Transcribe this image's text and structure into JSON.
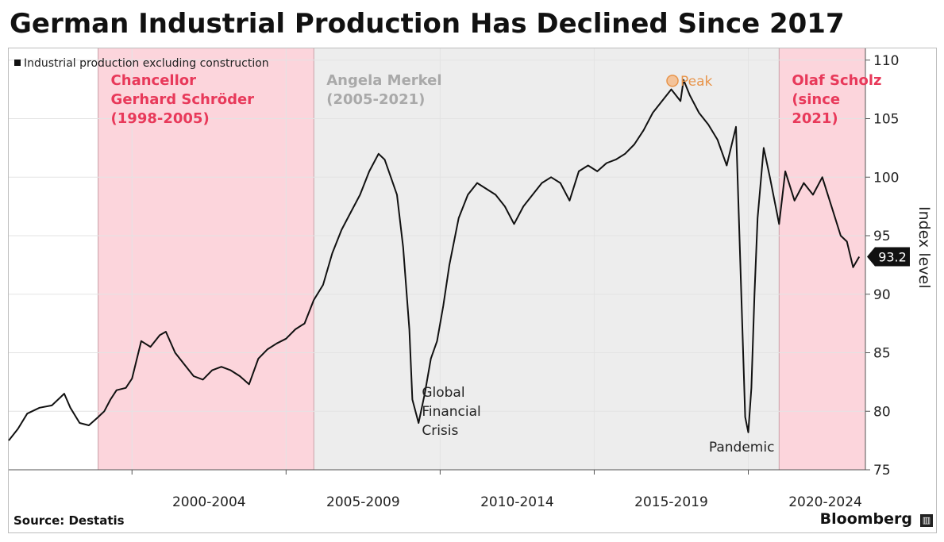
{
  "title": "German Industrial Production Has Declined Since 2017",
  "source": "Source: Destatis",
  "brand": "Bloomberg",
  "chart_data": {
    "type": "line",
    "legend": "Industrial production excluding construction",
    "ylabel": "Index level",
    "ylim": [
      75,
      111
    ],
    "yticks": [
      75,
      80,
      85,
      90,
      95,
      100,
      105,
      110
    ],
    "xlim": [
      1996.0,
      2023.8
    ],
    "x_periods": [
      {
        "label": "2000-2004",
        "start": 2000,
        "end": 2005
      },
      {
        "label": "2005-2009",
        "start": 2005,
        "end": 2010
      },
      {
        "label": "2010-2014",
        "start": 2010,
        "end": 2015
      },
      {
        "label": "2015-2019",
        "start": 2015,
        "end": 2020
      },
      {
        "label": "2020-2024",
        "start": 2020,
        "end": 2025
      }
    ],
    "last_value_label": "93.2",
    "shaded_periods": [
      {
        "label_lines": [
          "Chancellor",
          "Gerhard Schröder",
          "(1998-2005)"
        ],
        "start": 1998.9,
        "end": 2005.9,
        "color": "#fcd5dc",
        "text_color": "#e8395a"
      },
      {
        "label_lines": [
          "Angela Merkel",
          "(2005-2021)"
        ],
        "start": 2005.9,
        "end": 2021.0,
        "color": "#ededed",
        "text_color": "#a9a9a9"
      },
      {
        "label_lines": [
          "Olaf Scholz",
          "(since",
          "2021)"
        ],
        "start": 2021.0,
        "end": 2023.8,
        "color": "#fcd5dc",
        "text_color": "#e8395a"
      }
    ],
    "annotations": [
      {
        "text_lines": [
          "Global",
          "Financial",
          "Crisis"
        ],
        "x": 2009.2,
        "y": 79.0,
        "color": "#222"
      },
      {
        "text_lines": [
          "Pandemic"
        ],
        "x": 2020.3,
        "y": 78.2,
        "color": "#222"
      },
      {
        "text_lines": [
          "Peak"
        ],
        "x": 2017.9,
        "y": 108.3,
        "color": "#e8944a"
      }
    ],
    "series": [
      {
        "name": "Industrial production excluding construction",
        "color": "#111111",
        "x": [
          1996.0,
          1996.3,
          1996.6,
          1997.0,
          1997.4,
          1997.8,
          1998.0,
          1998.3,
          1998.6,
          1998.9,
          1999.1,
          1999.3,
          1999.5,
          1999.8,
          2000.0,
          2000.3,
          2000.6,
          2000.9,
          2001.1,
          2001.4,
          2001.7,
          2002.0,
          2002.3,
          2002.6,
          2002.9,
          2003.2,
          2003.5,
          2003.8,
          2004.1,
          2004.4,
          2004.7,
          2005.0,
          2005.3,
          2005.6,
          2005.9,
          2006.2,
          2006.5,
          2006.8,
          2007.1,
          2007.4,
          2007.7,
          2008.0,
          2008.2,
          2008.4,
          2008.6,
          2008.8,
          2009.0,
          2009.1,
          2009.3,
          2009.5,
          2009.7,
          2009.9,
          2010.1,
          2010.3,
          2010.6,
          2010.9,
          2011.2,
          2011.5,
          2011.8,
          2012.1,
          2012.4,
          2012.7,
          2013.0,
          2013.3,
          2013.6,
          2013.9,
          2014.2,
          2014.5,
          2014.8,
          2015.1,
          2015.4,
          2015.7,
          2016.0,
          2016.3,
          2016.6,
          2016.9,
          2017.2,
          2017.5,
          2017.8,
          2017.9,
          2018.1,
          2018.4,
          2018.7,
          2019.0,
          2019.3,
          2019.6,
          2019.9,
          2020.0,
          2020.1,
          2020.2,
          2020.3,
          2020.5,
          2020.7,
          2021.0,
          2021.2,
          2021.5,
          2021.8,
          2022.1,
          2022.4,
          2022.7,
          2023.0,
          2023.2,
          2023.4,
          2023.6
        ],
        "y": [
          77.5,
          78.5,
          79.8,
          80.3,
          80.5,
          81.5,
          80.3,
          79.0,
          78.8,
          79.5,
          80.0,
          81.0,
          81.8,
          82.0,
          82.8,
          86.0,
          85.5,
          86.5,
          86.8,
          85.0,
          84.0,
          83.0,
          82.7,
          83.5,
          83.8,
          83.5,
          83.0,
          82.3,
          84.5,
          85.3,
          85.8,
          86.2,
          87.0,
          87.5,
          89.5,
          90.8,
          93.5,
          95.5,
          97.0,
          98.5,
          100.5,
          102.0,
          101.5,
          100.0,
          98.5,
          94.0,
          87.0,
          81.0,
          79.0,
          81.5,
          84.5,
          86.0,
          89.0,
          92.5,
          96.5,
          98.5,
          99.5,
          99.0,
          98.5,
          97.5,
          96.0,
          97.5,
          98.5,
          99.5,
          100.0,
          99.5,
          98.0,
          100.5,
          101.0,
          100.5,
          101.2,
          101.5,
          102.0,
          102.8,
          104.0,
          105.5,
          106.5,
          107.5,
          106.5,
          108.3,
          107.0,
          105.5,
          104.5,
          103.2,
          101.0,
          104.3,
          79.5,
          78.2,
          82.0,
          90.0,
          96.5,
          102.5,
          100.0,
          96.0,
          100.5,
          98.0,
          99.5,
          98.5,
          100.0,
          97.5,
          95.0,
          94.5,
          92.3,
          93.2
        ]
      }
    ]
  }
}
